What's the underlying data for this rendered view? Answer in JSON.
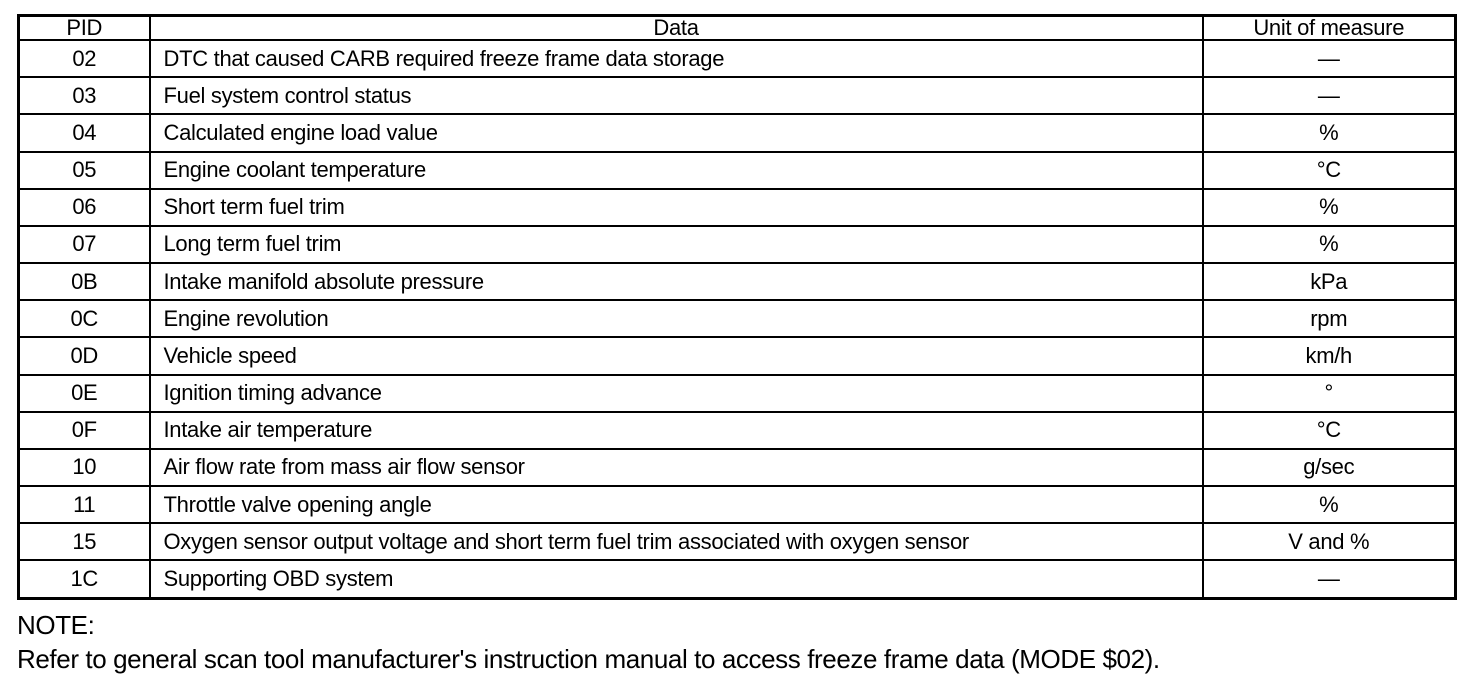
{
  "table": {
    "headers": {
      "pid": "PID",
      "data": "Data",
      "unit": "Unit of measure"
    },
    "rows": [
      {
        "pid": "02",
        "data": "DTC that caused CARB required freeze frame data storage",
        "unit": "—"
      },
      {
        "pid": "03",
        "data": "Fuel system control status",
        "unit": "—"
      },
      {
        "pid": "04",
        "data": "Calculated engine load value",
        "unit": "%"
      },
      {
        "pid": "05",
        "data": "Engine coolant temperature",
        "unit": "°C"
      },
      {
        "pid": "06",
        "data": "Short term fuel trim",
        "unit": "%"
      },
      {
        "pid": "07",
        "data": "Long term fuel trim",
        "unit": "%"
      },
      {
        "pid": "0B",
        "data": "Intake manifold absolute pressure",
        "unit": "kPa"
      },
      {
        "pid": "0C",
        "data": "Engine revolution",
        "unit": "rpm"
      },
      {
        "pid": "0D",
        "data": "Vehicle speed",
        "unit": "km/h"
      },
      {
        "pid": "0E",
        "data": "Ignition timing advance",
        "unit": "°"
      },
      {
        "pid": "0F",
        "data": "Intake air temperature",
        "unit": "°C"
      },
      {
        "pid": "10",
        "data": "Air flow rate from mass air flow sensor",
        "unit": "g/sec"
      },
      {
        "pid": "11",
        "data": "Throttle valve opening angle",
        "unit": "%"
      },
      {
        "pid": "15",
        "data": "Oxygen sensor output voltage and short term fuel trim associated with oxygen sensor",
        "unit": "V and %"
      },
      {
        "pid": "1C",
        "data": "Supporting OBD system",
        "unit": "—"
      }
    ]
  },
  "note": {
    "label": "NOTE:",
    "text": "Refer to general scan tool manufacturer's instruction manual to access freeze frame data (MODE $02)."
  }
}
